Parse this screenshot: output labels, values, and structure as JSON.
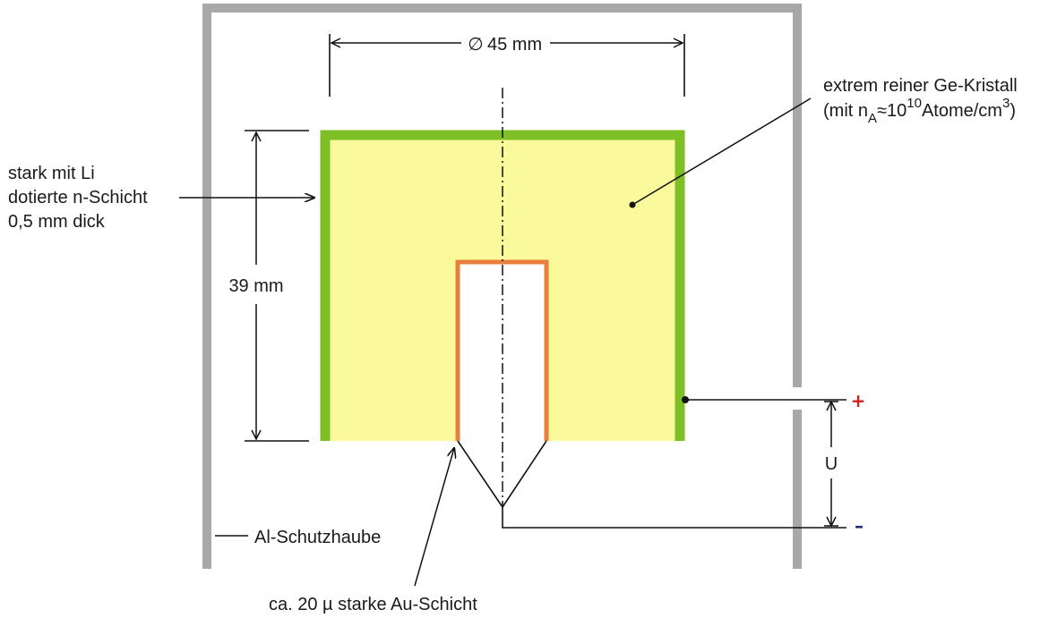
{
  "diagram": {
    "dimension_width": "45 mm",
    "diameter_symbol": "∅",
    "dimension_height": "39 mm",
    "crystal_label_line1": "extrem reiner Ge-Kristall",
    "crystal_label_mit": "(mit n",
    "crystal_label_sub_A": "A",
    "crystal_label_approx": "≈10",
    "crystal_label_exp": "10",
    "crystal_label_unit": "Atome/cm",
    "crystal_label_exp3": "3",
    "crystal_label_close": ")",
    "n_layer_line1": "stark mit Li",
    "n_layer_line2": "dotierte n-Schicht",
    "n_layer_line3": "0,5 mm dick",
    "housing_label": "Al-Schutzhaube",
    "au_layer_label": "ca. 20 µ starke Au-Schicht",
    "voltage_label": "U",
    "plus_symbol": "+",
    "minus_symbol": "–"
  },
  "colors": {
    "housing": "#a8a8a8",
    "crystal_fill": "#fafa9c",
    "n_layer": "#7dbf24",
    "au_layer": "#e8803c",
    "plus": "#d42020",
    "minus": "#1f2a7a",
    "line": "#111111"
  }
}
